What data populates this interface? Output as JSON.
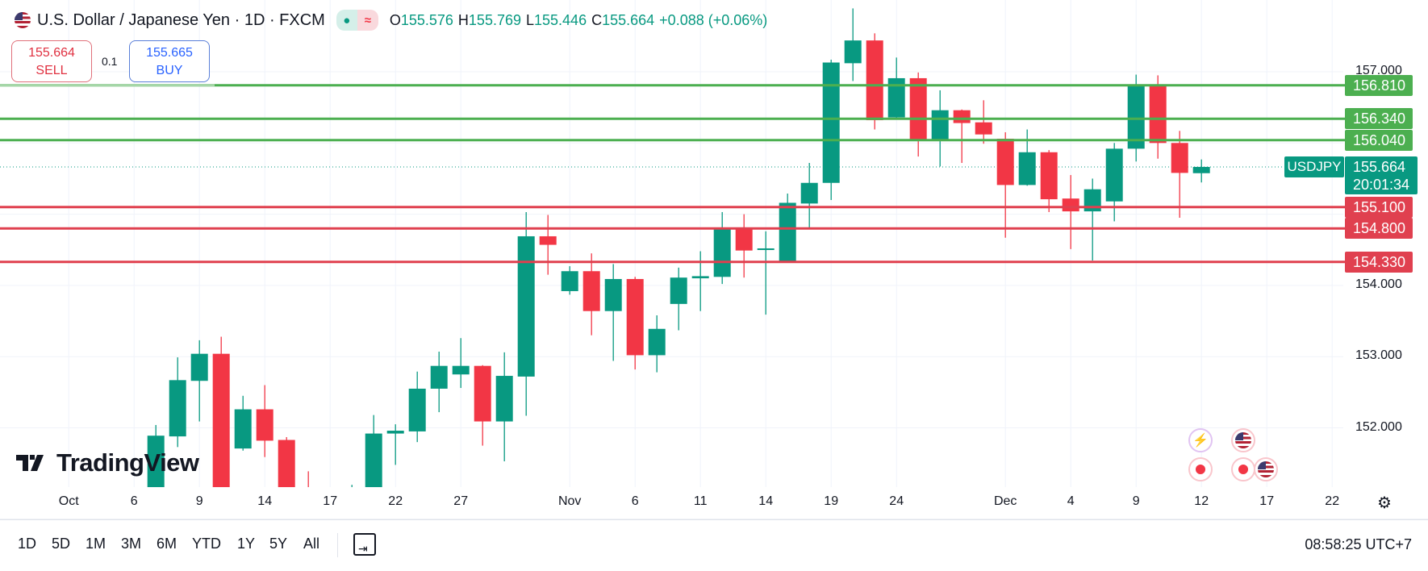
{
  "header": {
    "title": "U.S. Dollar / Japanese Yen · 1D · FXCM",
    "ohlc": {
      "o_label": "O",
      "o": "155.576",
      "h_label": "H",
      "h": "155.769",
      "l_label": "L",
      "l": "155.446",
      "c_label": "C",
      "c": "155.664",
      "change": "+0.088 (+0.06%)"
    },
    "status_icons": [
      "market-open-dot-icon",
      "delayed-data-icon"
    ]
  },
  "trade": {
    "sell_price": "155.664",
    "sell_label": "SELL",
    "spread": "0.1",
    "buy_price": "155.665",
    "buy_label": "BUY"
  },
  "price_axis": {
    "ticks": [
      "157.000",
      "154.000",
      "153.000",
      "152.000"
    ],
    "symbol": "USDJPY",
    "last_price": "155.664",
    "countdown": "20:01:34"
  },
  "levels": [
    {
      "price": "156.810",
      "kind": "resistance"
    },
    {
      "price": "156.340",
      "kind": "resistance"
    },
    {
      "price": "156.040",
      "kind": "resistance"
    },
    {
      "price": "155.100",
      "kind": "support"
    },
    {
      "price": "154.800",
      "kind": "support"
    },
    {
      "price": "154.330",
      "kind": "support"
    }
  ],
  "colors": {
    "up": "#089981",
    "down": "#f23645",
    "resistance": "#4caf50",
    "support": "#e0404f",
    "grid": "#f0f3fa"
  },
  "time_axis": [
    {
      "label": "Oct",
      "date": "Oct 1"
    },
    {
      "label": "6",
      "date": "Oct 6"
    },
    {
      "label": "9",
      "date": "Oct 9"
    },
    {
      "label": "14",
      "date": "Oct 14"
    },
    {
      "label": "17",
      "date": "Oct 17"
    },
    {
      "label": "22",
      "date": "Oct 22"
    },
    {
      "label": "27",
      "date": "Oct 27"
    },
    {
      "label": "Nov",
      "date": "Nov 3"
    },
    {
      "label": "6",
      "date": "Nov 6"
    },
    {
      "label": "11",
      "date": "Nov 11"
    },
    {
      "label": "14",
      "date": "Nov 14"
    },
    {
      "label": "19",
      "date": "Nov 19"
    },
    {
      "label": "24",
      "date": "Nov 24"
    },
    {
      "label": "Dec",
      "date": "Dec 1"
    },
    {
      "label": "4",
      "date": "Dec 4"
    },
    {
      "label": "9",
      "date": "Dec 9"
    },
    {
      "label": "12",
      "date": "Dec 12"
    },
    {
      "label": "17",
      "date": "Dec 17"
    },
    {
      "label": "22",
      "date": "Dec 22"
    }
  ],
  "chart_data": {
    "type": "candlestick",
    "symbol": "USDJPY",
    "ylim": [
      151.16,
      158.0
    ],
    "grid": true,
    "candles": [
      {
        "date": "Oct 7",
        "o": 150.9,
        "h": 152.04,
        "l": 150.8,
        "c": 151.89
      },
      {
        "date": "Oct 8",
        "o": 151.88,
        "h": 152.99,
        "l": 151.73,
        "c": 152.67
      },
      {
        "date": "Oct 9",
        "o": 152.66,
        "h": 153.23,
        "l": 152.09,
        "c": 153.04
      },
      {
        "date": "Oct 10",
        "o": 153.04,
        "h": 153.28,
        "l": 150.7,
        "c": 150.9
      },
      {
        "date": "Oct 13",
        "o": 151.71,
        "h": 152.45,
        "l": 151.68,
        "c": 152.26
      },
      {
        "date": "Oct 14",
        "o": 152.26,
        "h": 152.6,
        "l": 151.59,
        "c": 151.82
      },
      {
        "date": "Oct 15",
        "o": 151.83,
        "h": 151.87,
        "l": 150.8,
        "c": 150.9
      },
      {
        "date": "Oct 16",
        "o": 150.95,
        "h": 151.39,
        "l": 150.7,
        "c": 150.75
      },
      {
        "date": "Oct 20",
        "o": 150.6,
        "h": 151.2,
        "l": 150.5,
        "c": 150.9
      },
      {
        "date": "Oct 21",
        "o": 151.0,
        "h": 152.18,
        "l": 150.85,
        "c": 151.92
      },
      {
        "date": "Oct 22",
        "o": 151.92,
        "h": 152.05,
        "l": 151.48,
        "c": 151.96
      },
      {
        "date": "Oct 23",
        "o": 151.95,
        "h": 152.79,
        "l": 151.8,
        "c": 152.55
      },
      {
        "date": "Oct 24",
        "o": 152.55,
        "h": 153.07,
        "l": 152.22,
        "c": 152.87
      },
      {
        "date": "Oct 27",
        "o": 152.75,
        "h": 153.26,
        "l": 152.56,
        "c": 152.87
      },
      {
        "date": "Oct 28",
        "o": 152.87,
        "h": 152.88,
        "l": 151.75,
        "c": 152.09
      },
      {
        "date": "Oct 29",
        "o": 152.09,
        "h": 153.06,
        "l": 151.53,
        "c": 152.73
      },
      {
        "date": "Oct 30",
        "o": 152.72,
        "h": 155.03,
        "l": 152.17,
        "c": 154.69
      },
      {
        "date": "Oct 31",
        "o": 154.69,
        "h": 154.99,
        "l": 154.15,
        "c": 154.57
      },
      {
        "date": "Nov 3",
        "o": 153.92,
        "h": 154.27,
        "l": 153.87,
        "c": 154.2
      },
      {
        "date": "Nov 4",
        "o": 154.2,
        "h": 154.45,
        "l": 153.3,
        "c": 153.64
      },
      {
        "date": "Nov 5",
        "o": 153.64,
        "h": 154.3,
        "l": 152.94,
        "c": 154.09
      },
      {
        "date": "Nov 6",
        "o": 154.09,
        "h": 154.12,
        "l": 152.82,
        "c": 153.02
      },
      {
        "date": "Nov 7",
        "o": 153.02,
        "h": 153.58,
        "l": 152.78,
        "c": 153.39
      },
      {
        "date": "Nov 10",
        "o": 153.74,
        "h": 154.25,
        "l": 153.37,
        "c": 154.11
      },
      {
        "date": "Nov 11",
        "o": 154.1,
        "h": 154.48,
        "l": 153.64,
        "c": 154.13
      },
      {
        "date": "Nov 12",
        "o": 154.12,
        "h": 155.03,
        "l": 154.02,
        "c": 154.79
      },
      {
        "date": "Nov 13",
        "o": 154.79,
        "h": 155.0,
        "l": 154.11,
        "c": 154.49
      },
      {
        "date": "Nov 14",
        "o": 154.5,
        "h": 154.76,
        "l": 153.59,
        "c": 154.52
      },
      {
        "date": "Nov 17",
        "o": 154.34,
        "h": 155.29,
        "l": 154.32,
        "c": 155.16
      },
      {
        "date": "Nov 18",
        "o": 155.15,
        "h": 155.72,
        "l": 154.8,
        "c": 155.44
      },
      {
        "date": "Nov 19",
        "o": 155.44,
        "h": 157.17,
        "l": 155.2,
        "c": 157.13
      },
      {
        "date": "Nov 20",
        "o": 157.12,
        "h": 157.89,
        "l": 156.87,
        "c": 157.44
      },
      {
        "date": "Nov 21",
        "o": 157.44,
        "h": 157.54,
        "l": 156.19,
        "c": 156.32
      },
      {
        "date": "Nov 24",
        "o": 156.36,
        "h": 157.2,
        "l": 156.34,
        "c": 156.91
      },
      {
        "date": "Nov 25",
        "o": 156.91,
        "h": 156.99,
        "l": 155.81,
        "c": 156.03
      },
      {
        "date": "Nov 26",
        "o": 156.03,
        "h": 156.74,
        "l": 155.67,
        "c": 156.46
      },
      {
        "date": "Nov 27",
        "o": 156.46,
        "h": 156.47,
        "l": 155.72,
        "c": 156.28
      },
      {
        "date": "Nov 28",
        "o": 156.29,
        "h": 156.6,
        "l": 155.99,
        "c": 156.12
      },
      {
        "date": "Dec 1",
        "o": 156.06,
        "h": 156.15,
        "l": 154.67,
        "c": 155.41
      },
      {
        "date": "Dec 2",
        "o": 155.41,
        "h": 156.19,
        "l": 155.4,
        "c": 155.87
      },
      {
        "date": "Dec 3",
        "o": 155.87,
        "h": 155.9,
        "l": 155.03,
        "c": 155.21
      },
      {
        "date": "Dec 4",
        "o": 155.22,
        "h": 155.55,
        "l": 154.51,
        "c": 155.04
      },
      {
        "date": "Dec 5",
        "o": 155.04,
        "h": 155.5,
        "l": 154.35,
        "c": 155.35
      },
      {
        "date": "Dec 8",
        "o": 155.18,
        "h": 156.0,
        "l": 154.9,
        "c": 155.92
      },
      {
        "date": "Dec 9",
        "o": 155.92,
        "h": 156.96,
        "l": 155.74,
        "c": 156.82
      },
      {
        "date": "Dec 10",
        "o": 156.82,
        "h": 156.95,
        "l": 155.78,
        "c": 156.0
      },
      {
        "date": "Dec 11",
        "o": 156.0,
        "h": 156.17,
        "l": 154.95,
        "c": 155.58
      },
      {
        "date": "Dec 12",
        "o": 155.576,
        "h": 155.769,
        "l": 155.446,
        "c": 155.664
      }
    ]
  },
  "logo": "TradingView",
  "toolbar": {
    "ranges": [
      "1D",
      "5D",
      "1M",
      "3M",
      "6M",
      "YTD",
      "1Y",
      "5Y",
      "All"
    ],
    "clock": "08:58:25 UTC+7"
  }
}
